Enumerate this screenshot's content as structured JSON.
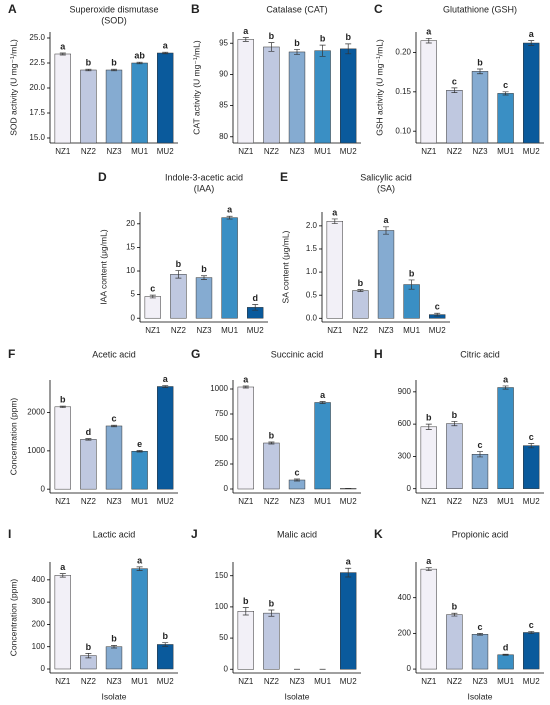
{
  "chart_data": [
    {
      "type": "bar",
      "panel": "A",
      "title": [
        "Superoxide dismutase",
        "(SOD)"
      ],
      "ylabel": "SOD activity (U mg⁻¹/mL)",
      "categories": [
        "NZ1",
        "NZ2",
        "NZ3",
        "MU1",
        "MU2"
      ],
      "values": [
        23.4,
        21.8,
        21.8,
        22.5,
        23.5
      ],
      "errors": [
        0.1,
        0.08,
        0.08,
        0.08,
        0.08
      ],
      "annotations": [
        "a",
        "b",
        "b",
        "ab",
        "a"
      ],
      "colors": [
        "#f2f0f7",
        "#bfc8e0",
        "#85abd1",
        "#3a8fc4",
        "#0a5a9c"
      ],
      "ylim": [
        14.5,
        25.6
      ],
      "yticks": [
        {
          "value": 15,
          "label": "15.0"
        },
        17.5,
        {
          "value": 20,
          "label": "20.0"
        },
        22.5,
        {
          "value": 25,
          "label": "25.0"
        }
      ]
    },
    {
      "type": "bar",
      "panel": "B",
      "title": "Catalase (CAT)",
      "ylabel": "CAT  activity (U mg⁻¹/mL)",
      "categories": [
        "NZ1",
        "NZ2",
        "NZ3",
        "MU1",
        "MU2"
      ],
      "values": [
        95.6,
        94.4,
        93.6,
        93.8,
        94.1
      ],
      "errors": [
        0.3,
        0.7,
        0.4,
        0.9,
        0.8
      ],
      "annotations": [
        "a",
        "b",
        "b",
        "b",
        "b"
      ],
      "colors": [
        "#f2f0f7",
        "#bfc8e0",
        "#85abd1",
        "#3a8fc4",
        "#0a5a9c"
      ],
      "ylim": [
        79,
        96.8
      ],
      "yticks": [
        80,
        85,
        90,
        95
      ]
    },
    {
      "type": "bar",
      "panel": "C",
      "title": "Glutathione (GSH)",
      "ylabel": "GSH  activity (U mg⁻¹/mL)",
      "categories": [
        "NZ1",
        "NZ2",
        "NZ3",
        "MU1",
        "MU2"
      ],
      "values": [
        0.215,
        0.152,
        0.176,
        0.148,
        0.212
      ],
      "errors": [
        0.003,
        0.003,
        0.003,
        0.002,
        0.003
      ],
      "annotations": [
        "a",
        "c",
        "b",
        "c",
        "a"
      ],
      "colors": [
        "#f2f0f7",
        "#bfc8e0",
        "#85abd1",
        "#3a8fc4",
        "#0a5a9c"
      ],
      "ylim": [
        0.085,
        0.226
      ],
      "yticks": [
        {
          "value": 0.1,
          "label": "0.10"
        },
        0.15,
        {
          "value": 0.2,
          "label": "0.20"
        }
      ]
    },
    {
      "type": "bar",
      "panel": "D",
      "title": [
        "Indole-3-acetic acid",
        "(IAA)"
      ],
      "ylabel": "IAA content (μg/mL)",
      "categories": [
        "NZ1",
        "NZ2",
        "NZ3",
        "MU1",
        "MU2"
      ],
      "values": [
        4.6,
        9.3,
        8.6,
        21.3,
        2.3
      ],
      "errors": [
        0.3,
        0.8,
        0.4,
        0.3,
        0.6
      ],
      "annotations": [
        "c",
        "b",
        "b",
        "a",
        "d"
      ],
      "colors": [
        "#f2f0f7",
        "#bfc8e0",
        "#85abd1",
        "#3a8fc4",
        "#0a5a9c"
      ],
      "ylim": [
        -0.8,
        22.5
      ],
      "yticks": [
        0,
        5,
        10,
        15,
        20
      ]
    },
    {
      "type": "bar",
      "panel": "E",
      "title": [
        "Salicylic acid",
        "(SA)"
      ],
      "ylabel": "SA content (μg/mL)",
      "categories": [
        "NZ1",
        "NZ2",
        "NZ3",
        "MU1",
        "MU2"
      ],
      "values": [
        2.1,
        0.6,
        1.9,
        0.73,
        0.08
      ],
      "errors": [
        0.05,
        0.02,
        0.08,
        0.1,
        0.03
      ],
      "annotations": [
        "a",
        "b",
        "a",
        "b",
        "c"
      ],
      "colors": [
        "#f2f0f7",
        "#bfc8e0",
        "#85abd1",
        "#3a8fc4",
        "#0a5a9c"
      ],
      "ylim": [
        -0.08,
        2.3
      ],
      "yticks": [
        {
          "value": 0,
          "label": "0.0"
        },
        0.5,
        {
          "value": 1,
          "label": "1.0"
        },
        1.5,
        {
          "value": 2,
          "label": "2.0"
        }
      ]
    },
    {
      "type": "bar",
      "panel": "F",
      "title": "Acetic acid",
      "ylabel": "Concentration (ppm)",
      "categories": [
        "NZ1",
        "NZ2",
        "NZ3",
        "MU1",
        "MU2"
      ],
      "values": [
        2150,
        1300,
        1650,
        990,
        2680
      ],
      "errors": [
        20,
        20,
        20,
        20,
        25
      ],
      "annotations": [
        "b",
        "d",
        "c",
        "e",
        "a"
      ],
      "colors": [
        "#f2f0f7",
        "#bfc8e0",
        "#85abd1",
        "#3a8fc4",
        "#0a5a9c"
      ],
      "ylim": [
        -100,
        2850
      ],
      "yticks": [
        0,
        1000,
        2000
      ]
    },
    {
      "type": "bar",
      "panel": "G",
      "title": "Succinic acid",
      "categories": [
        "NZ1",
        "NZ2",
        "NZ3",
        "MU1",
        "MU2"
      ],
      "values": [
        1020,
        460,
        90,
        865,
        5
      ],
      "errors": [
        10,
        10,
        10,
        10,
        2
      ],
      "annotations": [
        "a",
        "b",
        "c",
        "a",
        null
      ],
      "colors": [
        "#f2f0f7",
        "#bfc8e0",
        "#85abd1",
        "#3a8fc4",
        "#0a5a9c"
      ],
      "ylim": [
        -40,
        1090
      ],
      "yticks": [
        0,
        250,
        500,
        750,
        1000
      ]
    },
    {
      "type": "bar",
      "panel": "H",
      "title": "Citric acid",
      "categories": [
        "NZ1",
        "NZ2",
        "NZ3",
        "MU1",
        "MU2"
      ],
      "values": [
        575,
        605,
        320,
        940,
        400
      ],
      "errors": [
        25,
        20,
        25,
        15,
        20
      ],
      "annotations": [
        "b",
        "b",
        "c",
        "a",
        "c"
      ],
      "colors": [
        "#f2f0f7",
        "#bfc8e0",
        "#85abd1",
        "#3a8fc4",
        "#0a5a9c"
      ],
      "ylim": [
        -40,
        1010
      ],
      "yticks": [
        0,
        300,
        600,
        900
      ]
    },
    {
      "type": "bar",
      "panel": "I",
      "title": "Lactic acid",
      "ylabel": "Concentration (ppm)",
      "xlabel": "Isolate",
      "categories": [
        "NZ1",
        "NZ2",
        "NZ3",
        "MU1",
        "MU2"
      ],
      "values": [
        420,
        60,
        100,
        450,
        110
      ],
      "errors": [
        8,
        10,
        6,
        8,
        8
      ],
      "annotations": [
        "a",
        "b",
        "b",
        "a",
        "b"
      ],
      "colors": [
        "#f2f0f7",
        "#bfc8e0",
        "#85abd1",
        "#3a8fc4",
        "#0a5a9c"
      ],
      "ylim": [
        -18,
        480
      ],
      "yticks": [
        0,
        100,
        200,
        300,
        400
      ]
    },
    {
      "type": "bar",
      "panel": "J",
      "title": "Malic acid",
      "xlabel": "Isolate",
      "categories": [
        "NZ1",
        "NZ2",
        "NZ3",
        "MU1",
        "MU2"
      ],
      "values": [
        93,
        90,
        0,
        0,
        155
      ],
      "errors": [
        6,
        5,
        0,
        0,
        7
      ],
      "annotations": [
        "b",
        "b",
        null,
        null,
        "a"
      ],
      "colors": [
        "#f2f0f7",
        "#bfc8e0",
        "#85abd1",
        "#3a8fc4",
        "#0a5a9c"
      ],
      "ylim": [
        -6,
        172
      ],
      "yticks": [
        0,
        50,
        100,
        150
      ]
    },
    {
      "type": "bar",
      "panel": "K",
      "title": "Propionic acid",
      "xlabel": "Isolate",
      "categories": [
        "NZ1",
        "NZ2",
        "NZ3",
        "MU1",
        "MU2"
      ],
      "values": [
        560,
        305,
        195,
        80,
        205
      ],
      "errors": [
        8,
        8,
        5,
        3,
        6
      ],
      "annotations": [
        "a",
        "b",
        "c",
        "d",
        "c"
      ],
      "colors": [
        "#f2f0f7",
        "#bfc8e0",
        "#85abd1",
        "#3a8fc4",
        "#0a5a9c"
      ],
      "ylim": [
        -22,
        600
      ],
      "yticks": [
        0,
        200,
        400
      ]
    }
  ]
}
